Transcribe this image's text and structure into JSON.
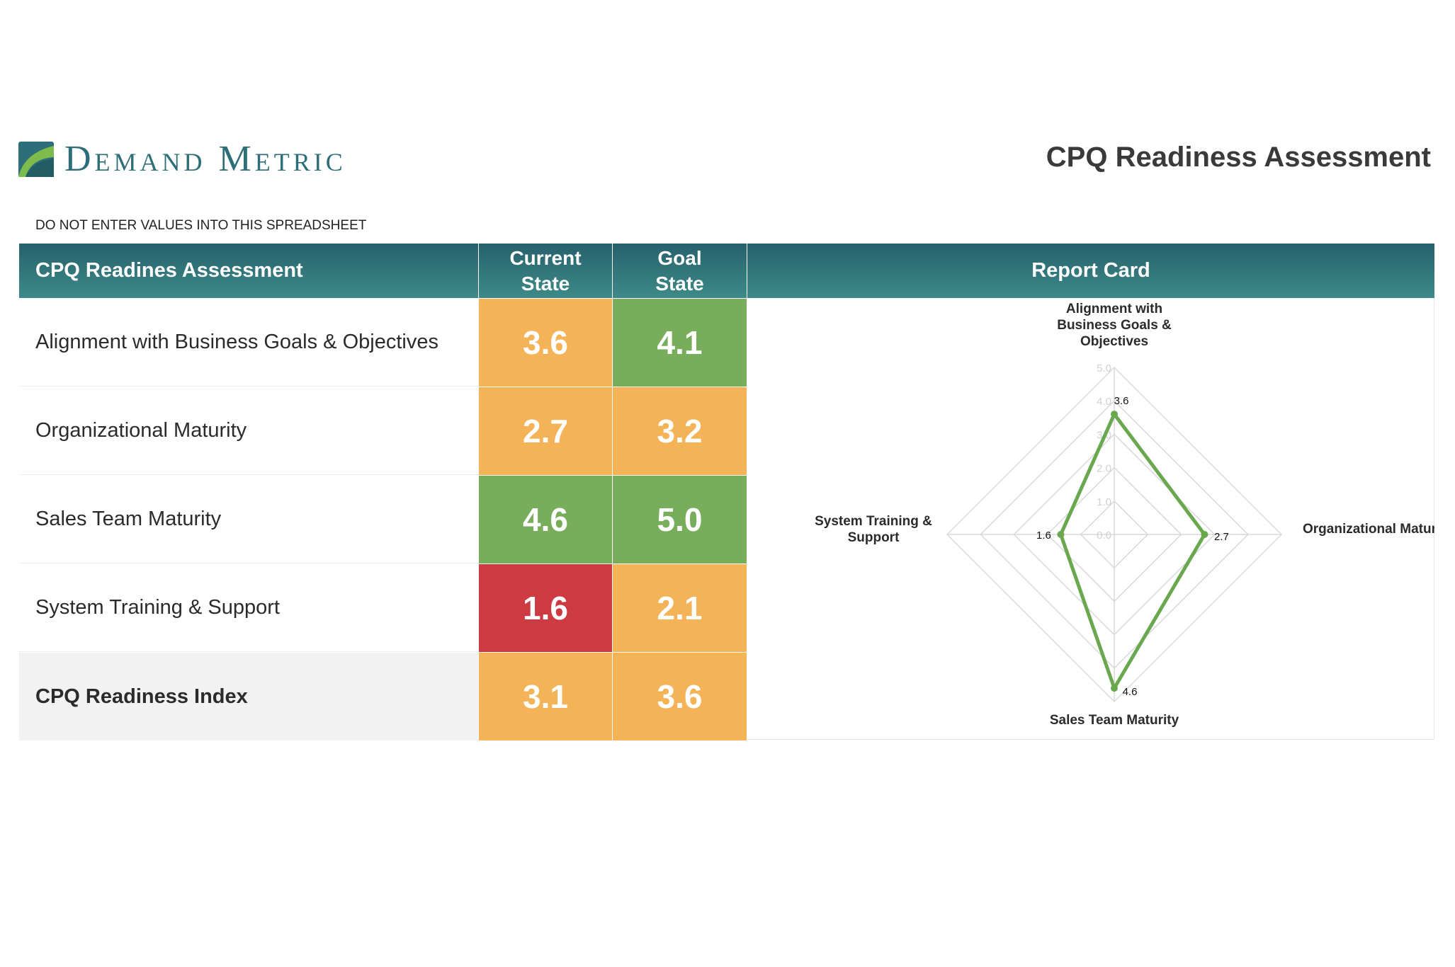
{
  "header": {
    "brand_name": "Demand Metric",
    "page_title": "CPQ Readiness Assessment"
  },
  "notice": "DO NOT ENTER VALUES INTO THIS SPREADSHEET",
  "table": {
    "columns": {
      "assessment": "CPQ Readines Assessment",
      "current_line1": "Current",
      "current_line2": "State",
      "goal_line1": "Goal",
      "goal_line2": "State",
      "report": "Report Card"
    },
    "rows": [
      {
        "label": "Alignment with Business Goals & Objectives",
        "current": "3.6",
        "goal": "4.1",
        "current_color": "#f5b357",
        "goal_color": "#78ad5c"
      },
      {
        "label": "Organizational Maturity",
        "current": "2.7",
        "goal": "3.2",
        "current_color": "#f5b357",
        "goal_color": "#f5b357"
      },
      {
        "label": "Sales Team Maturity",
        "current": "4.6",
        "goal": "5.0",
        "current_color": "#78ad5c",
        "goal_color": "#78ad5c"
      },
      {
        "label": "System Training & Support",
        "current": "1.6",
        "goal": "2.1",
        "current_color": "#cd3a42",
        "goal_color": "#f5b357"
      }
    ],
    "total": {
      "label": "CPQ Readiness Index",
      "current": "3.1",
      "goal": "3.6",
      "current_color": "#f5b357",
      "goal_color": "#f5b357"
    }
  },
  "chart_data": {
    "type": "radar",
    "title": "",
    "axes": [
      {
        "label_lines": [
          "Alignment with",
          "Business Goals &",
          "Objectives"
        ]
      },
      {
        "label_lines": [
          "Organizational Maturity"
        ]
      },
      {
        "label_lines": [
          "Sales Team Maturity"
        ]
      },
      {
        "label_lines": [
          "System Training &",
          "Support"
        ]
      }
    ],
    "series": [
      {
        "values": [
          3.6,
          2.7,
          4.6,
          1.6
        ],
        "data_labels": [
          "3.6",
          "2.7",
          "4.6",
          "1.6"
        ],
        "color": "#6aa84f"
      }
    ],
    "rlim": [
      0,
      5
    ],
    "ticks": [
      "0.0",
      "1.0",
      "2.0",
      "3.0",
      "4.0",
      "5.0"
    ],
    "grid": true,
    "legend": "none"
  }
}
